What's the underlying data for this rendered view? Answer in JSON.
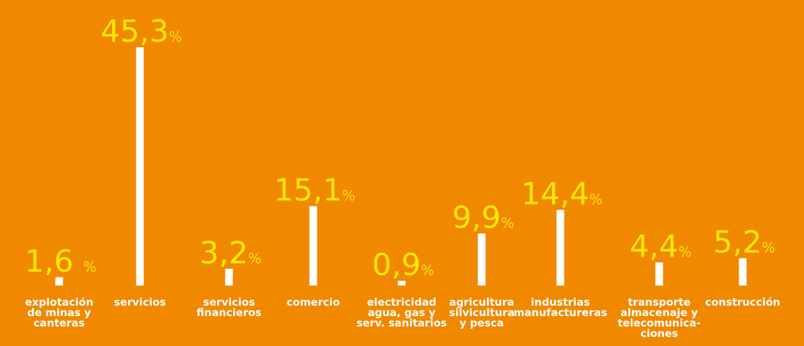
{
  "chart_data": {
    "type": "bar",
    "categories": [
      [
        "explotación",
        "de minas y",
        "canteras"
      ],
      [
        "servicios"
      ],
      [
        "servicios",
        "financieros"
      ],
      [
        "comercio"
      ],
      [
        "electricidad",
        "agua, gas y",
        "serv. sanitarios"
      ],
      [
        "agricultura",
        "silvicultura",
        "y pesca"
      ],
      [
        "industrias",
        "manufactureras"
      ],
      [
        "transporte",
        "almacenaje y",
        "telecomunica-",
        "ciones"
      ],
      [
        "construcción"
      ]
    ],
    "values": [
      1.6,
      45.3,
      3.2,
      15.1,
      0.9,
      9.9,
      14.4,
      4.4,
      5.2
    ],
    "value_labels": [
      "1,6 ",
      "45,3",
      "3,2",
      "15,1",
      "0,9",
      "9,9",
      "14,4",
      "4,4",
      "5,2"
    ],
    "unit": "%",
    "colors": {
      "background": "#f08800",
      "bar": "#ffffff",
      "value_text": "#ffe800",
      "category_text": "#ffffff"
    }
  }
}
